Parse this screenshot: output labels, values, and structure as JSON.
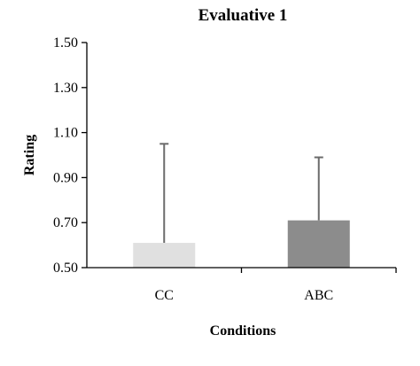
{
  "chart_data": {
    "type": "bar",
    "title": "Evaluative 1",
    "xlabel": "Conditions",
    "ylabel": "Rating",
    "categories": [
      "CC",
      "ABC"
    ],
    "values": [
      0.61,
      0.71
    ],
    "error_upper": [
      1.05,
      0.99
    ],
    "ylim": [
      0.5,
      1.5
    ],
    "yticks": [
      "0.50",
      "0.70",
      "0.90",
      "1.10",
      "1.30",
      "1.50"
    ],
    "grid": false,
    "legend": "none",
    "colors": {
      "bars": [
        "#e0e0e0",
        "#8c8c8c"
      ],
      "error_bars": "#6b6b6b",
      "axis": "#000000"
    }
  }
}
